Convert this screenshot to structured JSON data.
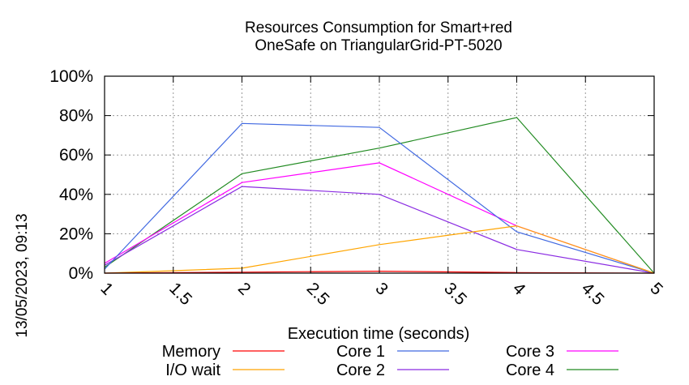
{
  "chart_data": {
    "type": "line",
    "title_lines": [
      "Resources Consumption for Smart+red",
      "OneSafe on TriangularGrid-PT-5020"
    ],
    "xlabel": "Execution time (seconds)",
    "ylabel": "",
    "xlim": [
      1,
      5
    ],
    "ylim": [
      0,
      100
    ],
    "x_ticks": [
      "1",
      "1.5",
      "2",
      "2.5",
      "3",
      "3.5",
      "4",
      "4.5",
      "5"
    ],
    "y_ticks": [
      "0%",
      "20%",
      "40%",
      "60%",
      "80%",
      "100%"
    ],
    "grid": true,
    "legend_position": "bottom",
    "x": [
      1,
      2,
      3,
      4,
      5
    ],
    "series": [
      {
        "name": "Memory",
        "color": "#ff0000",
        "values": [
          0,
          0.5,
          1,
          0.3,
          0
        ]
      },
      {
        "name": "I/O wait",
        "color": "#ffa500",
        "values": [
          0,
          2.5,
          14.5,
          24,
          0
        ]
      },
      {
        "name": "Core 1",
        "color": "#4169e1",
        "values": [
          2,
          76,
          74,
          21,
          0
        ]
      },
      {
        "name": "Core 2",
        "color": "#8a2be2",
        "values": [
          4,
          44,
          40,
          12,
          0
        ]
      },
      {
        "name": "Core 3",
        "color": "#ff00ff",
        "values": [
          5,
          46,
          56,
          24,
          0
        ]
      },
      {
        "name": "Core 4",
        "color": "#228b22",
        "values": [
          3,
          50.5,
          63.5,
          79,
          0
        ]
      }
    ]
  },
  "timestamp": "13/05/2023, 09:13"
}
